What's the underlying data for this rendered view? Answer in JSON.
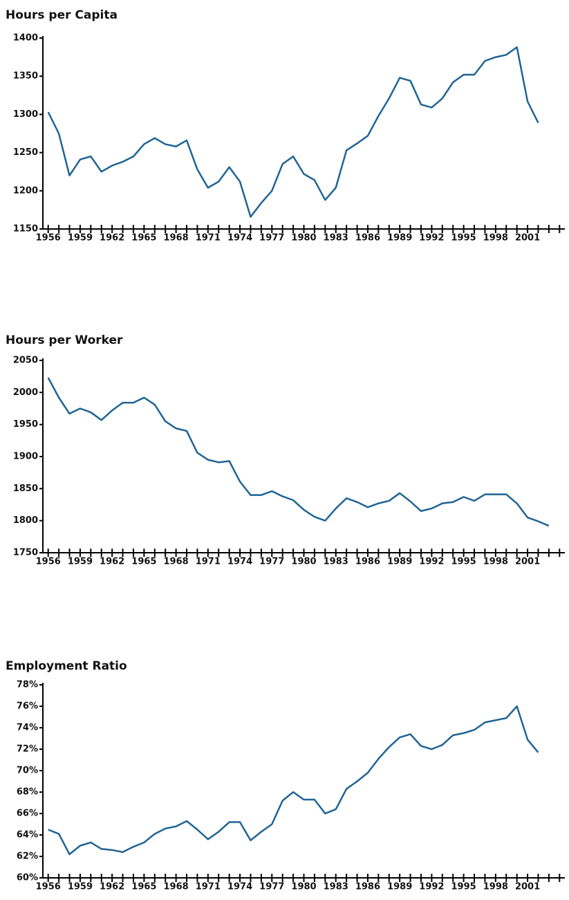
{
  "chart_data": [
    {
      "type": "line",
      "title": "Hours per Capita",
      "color": "#1f6394",
      "x": [
        1956,
        1957,
        1958,
        1959,
        1960,
        1961,
        1962,
        1963,
        1964,
        1965,
        1966,
        1967,
        1968,
        1969,
        1970,
        1971,
        1972,
        1973,
        1974,
        1975,
        1976,
        1977,
        1978,
        1979,
        1980,
        1981,
        1982,
        1983,
        1984,
        1985,
        1986,
        1987,
        1988,
        1989,
        1990,
        1991,
        1992,
        1993,
        1994,
        1995,
        1996,
        1997,
        1998,
        1999,
        2000,
        2001,
        2002
      ],
      "values": [
        1303,
        1275,
        1220,
        1241,
        1245,
        1225,
        1233,
        1238,
        1245,
        1261,
        1269,
        1261,
        1258,
        1266,
        1228,
        1204,
        1212,
        1231,
        1212,
        1166,
        1184,
        1200,
        1235,
        1245,
        1222,
        1214,
        1188,
        1204,
        1253,
        1262,
        1272,
        1298,
        1321,
        1348,
        1344,
        1313,
        1309,
        1321,
        1342,
        1352,
        1352,
        1370,
        1375,
        1378,
        1388,
        1317,
        1289
      ],
      "xlim": [
        1955.5,
        2004.5
      ],
      "ylim": [
        1150,
        1400
      ],
      "yticks": [
        1150,
        1200,
        1250,
        1300,
        1350,
        1400
      ],
      "xticks": [
        1956,
        1957,
        1958,
        1959,
        1960,
        1961,
        1962,
        1963,
        1964,
        1965,
        1966,
        1967,
        1968,
        1969,
        1970,
        1971,
        1972,
        1973,
        1974,
        1975,
        1976,
        1977,
        1978,
        1979,
        1980,
        1981,
        1982,
        1983,
        1984,
        1985,
        1986,
        1987,
        1988,
        1989,
        1990,
        1991,
        1992,
        1993,
        1994,
        1995,
        1996,
        1997,
        1998,
        1999,
        2000,
        2001,
        2002,
        2003,
        2004
      ],
      "xtick_label_step": 3
    },
    {
      "type": "line",
      "title": "Hours per Worker",
      "color": "#1f6394",
      "x": [
        1956,
        1957,
        1958,
        1959,
        1960,
        1961,
        1962,
        1963,
        1964,
        1965,
        1966,
        1967,
        1968,
        1969,
        1970,
        1971,
        1972,
        1973,
        1974,
        1975,
        1976,
        1977,
        1978,
        1979,
        1980,
        1981,
        1982,
        1983,
        1984,
        1985,
        1986,
        1987,
        1988,
        1989,
        1990,
        1991,
        1992,
        1993,
        1994,
        1995,
        1996,
        1997,
        1998,
        1999,
        2000,
        2001,
        2002,
        2003
      ],
      "values": [
        2023,
        1992,
        1967,
        1975,
        1969,
        1957,
        1972,
        1984,
        1984,
        1992,
        1981,
        1955,
        1944,
        1940,
        1906,
        1895,
        1891,
        1893,
        1861,
        1840,
        1840,
        1846,
        1838,
        1832,
        1817,
        1806,
        1800,
        1819,
        1835,
        1829,
        1821,
        1827,
        1831,
        1843,
        1830,
        1815,
        1819,
        1827,
        1829,
        1837,
        1831,
        1841,
        1841,
        1841,
        1827,
        1805,
        1799,
        1792
      ],
      "xlim": [
        1955.5,
        2004.5
      ],
      "ylim": [
        1750,
        2050
      ],
      "yticks": [
        1750,
        1800,
        1850,
        1900,
        1950,
        2000,
        2050
      ],
      "xticks": [
        1956,
        1957,
        1958,
        1959,
        1960,
        1961,
        1962,
        1963,
        1964,
        1965,
        1966,
        1967,
        1968,
        1969,
        1970,
        1971,
        1972,
        1973,
        1974,
        1975,
        1976,
        1977,
        1978,
        1979,
        1980,
        1981,
        1982,
        1983,
        1984,
        1985,
        1986,
        1987,
        1988,
        1989,
        1990,
        1991,
        1992,
        1993,
        1994,
        1995,
        1996,
        1997,
        1998,
        1999,
        2000,
        2001,
        2002,
        2003,
        2004
      ],
      "xtick_label_step": 3
    },
    {
      "type": "line",
      "title": "Employment Ratio",
      "color": "#1f6394",
      "x": [
        1956,
        1957,
        1958,
        1959,
        1960,
        1961,
        1962,
        1963,
        1964,
        1965,
        1966,
        1967,
        1968,
        1969,
        1970,
        1971,
        1972,
        1973,
        1974,
        1975,
        1976,
        1977,
        1978,
        1979,
        1980,
        1981,
        1982,
        1983,
        1984,
        1985,
        1986,
        1987,
        1988,
        1989,
        1990,
        1991,
        1992,
        1993,
        1994,
        1995,
        1996,
        1997,
        1998,
        1999,
        2000,
        2001,
        2002
      ],
      "values": [
        64.5,
        64.1,
        62.2,
        63.0,
        63.3,
        62.7,
        62.6,
        62.4,
        62.9,
        63.3,
        64.1,
        64.6,
        64.8,
        65.3,
        64.5,
        63.6,
        64.3,
        65.2,
        65.2,
        63.5,
        64.3,
        65.0,
        67.2,
        68.0,
        67.3,
        67.3,
        66.0,
        66.4,
        68.3,
        69.0,
        69.8,
        71.1,
        72.2,
        73.1,
        73.4,
        72.3,
        72.0,
        72.4,
        73.3,
        73.5,
        73.8,
        74.5,
        74.7,
        74.9,
        76.0,
        72.9,
        71.7
      ],
      "xlim": [
        1955.5,
        2004.5
      ],
      "ylim": [
        60,
        78
      ],
      "yticks": [
        {
          "value": 60,
          "label": "60%"
        },
        {
          "value": 62,
          "label": "62%"
        },
        {
          "value": 64,
          "label": "64%"
        },
        {
          "value": 66,
          "label": "66%"
        },
        {
          "value": 68,
          "label": "68%"
        },
        {
          "value": 70,
          "label": "70%"
        },
        {
          "value": 72,
          "label": "72%"
        },
        {
          "value": 74,
          "label": "74%"
        },
        {
          "value": 76,
          "label": "76%"
        },
        {
          "value": 78,
          "label": "78%"
        }
      ],
      "xticks": [
        1956,
        1957,
        1958,
        1959,
        1960,
        1961,
        1962,
        1963,
        1964,
        1965,
        1966,
        1967,
        1968,
        1969,
        1970,
        1971,
        1972,
        1973,
        1974,
        1975,
        1976,
        1977,
        1978,
        1979,
        1980,
        1981,
        1982,
        1983,
        1984,
        1985,
        1986,
        1987,
        1988,
        1989,
        1990,
        1991,
        1992,
        1993,
        1994,
        1995,
        1996,
        1997,
        1998,
        1999,
        2000,
        2001,
        2002,
        2003,
        2004
      ],
      "xtick_label_step": 3
    }
  ]
}
